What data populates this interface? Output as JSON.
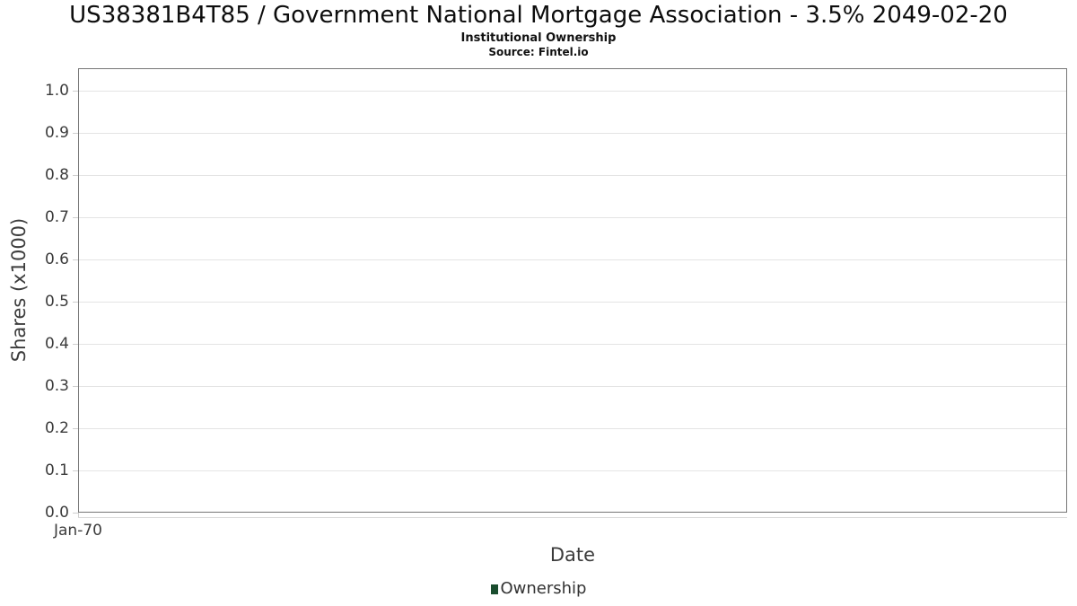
{
  "chart_data": {
    "type": "line",
    "title": "US38381B4T85 / Government National Mortgage Association - 3.5% 2049-02-20",
    "subtitle": "Institutional Ownership",
    "source": "Source: Fintel.io",
    "xlabel": "Date",
    "ylabel": "Shares (x1000)",
    "x_ticks": [
      "Jan-70"
    ],
    "y_ticks": [
      "0.0",
      "0.1",
      "0.2",
      "0.3",
      "0.4",
      "0.5",
      "0.6",
      "0.7",
      "0.8",
      "0.9",
      "1.0"
    ],
    "ylim": [
      0.0,
      1.05
    ],
    "grid": true,
    "legend_position": "bottom",
    "legend": [
      {
        "label": "Ownership",
        "color": "#1a4d2e"
      }
    ],
    "series": [
      {
        "name": "Ownership",
        "x": [],
        "values": []
      }
    ],
    "colors": {
      "axis_border": "#777777",
      "gridline": "#e4e4e4",
      "tick": "#cfcfcf",
      "text": "#3c3c3c",
      "series_ownership": "#1a4d2e"
    }
  }
}
